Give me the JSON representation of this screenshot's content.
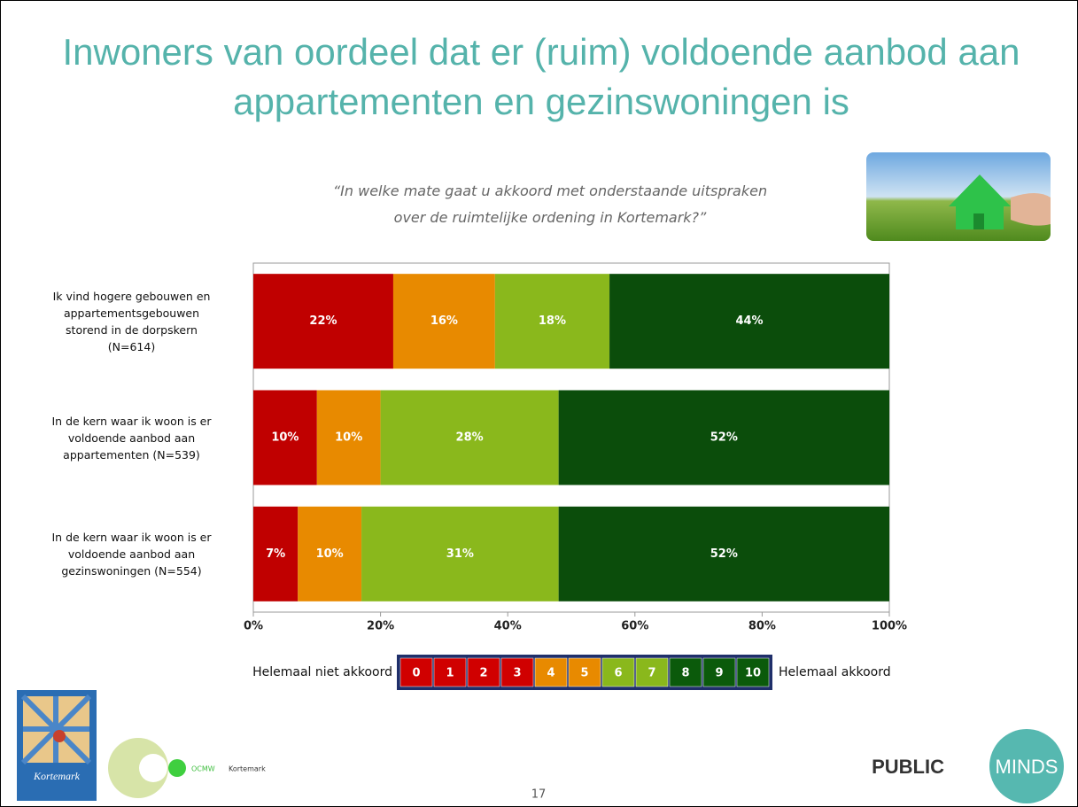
{
  "chart_data": {
    "type": "bar",
    "orientation": "horizontal",
    "stacked": true,
    "title": "Inwoners van oordeel dat er (ruim) voldoende aanbod aan appartementen en gezinswoningen is",
    "subtitle": "“In welke mate gaat u akkoord met onderstaande uitspraken\nover de ruimtelijke ordening in Kortemark?”",
    "categories": [
      "Ik vind hogere gebouwen en\nappartementsgebouwen\nstorend in de dorpskern\n(N=614)",
      "In de kern waar ik woon is er\nvoldoende aanbod aan\nappartementen (N=539)",
      "In de kern waar ik woon is er\nvoldoende aanbod aan\ngezinswoningen (N=554)"
    ],
    "series": [
      {
        "color": "#c00000",
        "values": [
          22,
          10,
          7
        ],
        "value_labels": [
          "22%",
          "10%",
          "7%"
        ]
      },
      {
        "color": "#e88a00",
        "values": [
          16,
          10,
          10
        ],
        "value_labels": [
          "16%",
          "10%",
          "10%"
        ]
      },
      {
        "color": "#8ab81c",
        "values": [
          18,
          28,
          31
        ],
        "value_labels": [
          "18%",
          "28%",
          "31%"
        ]
      },
      {
        "color": "#0b4d0b",
        "values": [
          44,
          52,
          52
        ],
        "value_labels": [
          "44%",
          "52%",
          "52%"
        ]
      }
    ],
    "xlim": [
      0,
      100
    ],
    "xticks": [
      {
        "value": 0,
        "label": "0%"
      },
      {
        "value": 20,
        "label": "20%"
      },
      {
        "value": 40,
        "label": "40%"
      },
      {
        "value": 60,
        "label": "60%"
      },
      {
        "value": 80,
        "label": "80%"
      },
      {
        "value": 100,
        "label": "100%"
      }
    ],
    "legend": {
      "left_label": "Helemaal niet akkoord",
      "right_label": "Helemaal akkoord",
      "scale": [
        0,
        1,
        2,
        3,
        4,
        5,
        6,
        7,
        8,
        9,
        10
      ],
      "colors": [
        "#d00000",
        "#d00000",
        "#d00000",
        "#d00000",
        "#e88a00",
        "#e88a00",
        "#8ab81c",
        "#8ab81c",
        "#0b5a0b",
        "#0b5a0b",
        "#0b5a0b"
      ]
    }
  },
  "footer": {
    "page_number": 17,
    "brand_left": "PUBLIC",
    "brand_right": "MINDS",
    "partner": "OCMW",
    "partner_town": "Kortemark",
    "logo_text": "Kortemark"
  }
}
